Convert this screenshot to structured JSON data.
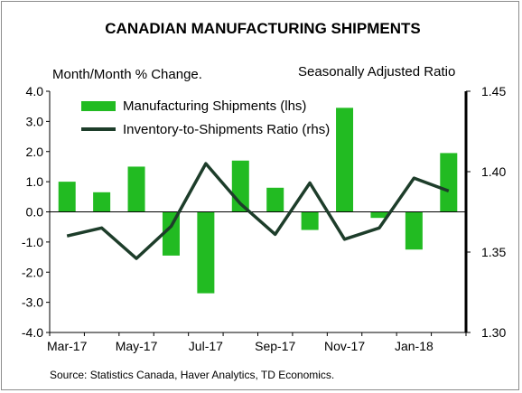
{
  "chart_data": {
    "type": "bar+line",
    "title": "CANADIAN MANUFACTURING SHIPMENTS",
    "left_axis_label": "Month/Month % Change.",
    "right_axis_label": "Seasonally Adjusted Ratio",
    "categories": [
      "Mar-17",
      "Apr-17",
      "May-17",
      "Jun-17",
      "Jul-17",
      "Aug-17",
      "Sep-17",
      "Oct-17",
      "Nov-17",
      "Dec-17",
      "Jan-18",
      "Feb-18"
    ],
    "x_tick_labels": [
      "Mar-17",
      "May-17",
      "Jul-17",
      "Sep-17",
      "Nov-17",
      "Jan-18"
    ],
    "y_left": {
      "min": -4.0,
      "max": 4.0,
      "ticks": [
        "4.0",
        "3.0",
        "2.0",
        "1.0",
        "0.0",
        "-1.0",
        "-2.0",
        "-3.0",
        "-4.0"
      ]
    },
    "y_right": {
      "min": 1.3,
      "max": 1.45,
      "ticks": [
        "1.45",
        "1.40",
        "1.35",
        "1.30"
      ]
    },
    "series": [
      {
        "name": "Manufacturing Shipments (lhs)",
        "type": "bar",
        "axis": "left",
        "color": "#22bb22",
        "values": [
          1.0,
          0.65,
          1.5,
          -1.45,
          -2.7,
          1.7,
          0.8,
          -0.6,
          3.45,
          -0.2,
          -1.25,
          1.95
        ]
      },
      {
        "name": "Inventory-to-Shipments Ratio (rhs)",
        "type": "line",
        "axis": "right",
        "color": "#1d3d2a",
        "values": [
          1.36,
          1.365,
          1.346,
          1.366,
          1.405,
          1.38,
          1.361,
          1.393,
          1.358,
          1.365,
          1.396,
          1.388
        ]
      }
    ],
    "legend_position": "top-left",
    "source": "Source: Statistics Canada, Haver Analytics, TD Economics."
  }
}
